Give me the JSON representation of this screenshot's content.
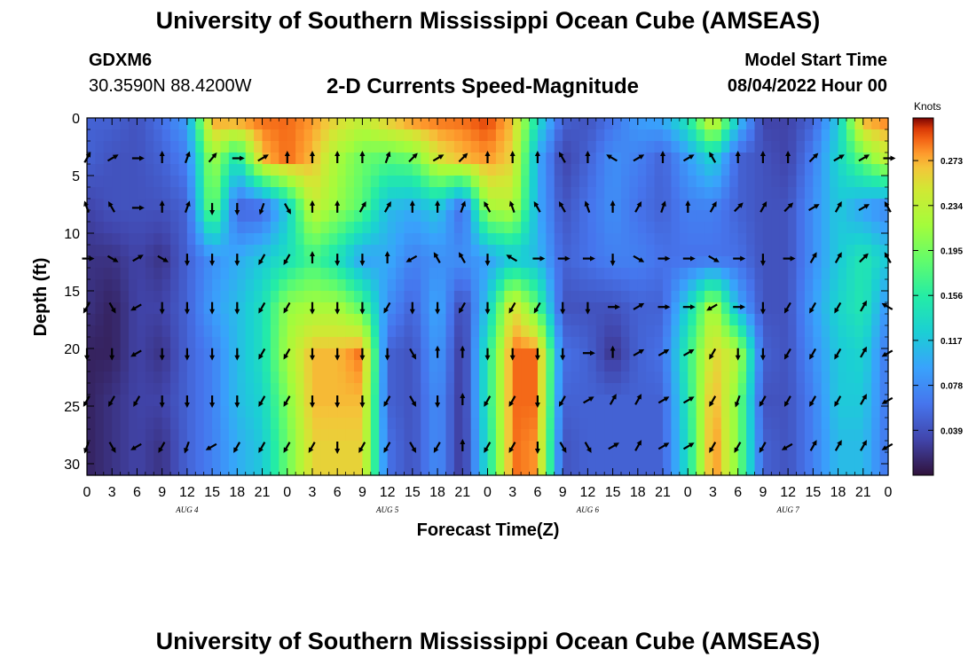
{
  "header": {
    "title_top": "University of Southern Mississippi Ocean Cube (AMSEAS)",
    "title_bottom": "University of Southern Mississippi Ocean Cube (AMSEAS)",
    "station_id": "GDXM6",
    "station_coords": "30.3590N  88.4200W",
    "plot_title": "2-D Currents Speed-Magnitude",
    "model_label": "Model Start Time",
    "model_date": "08/04/2022 Hour 00"
  },
  "chart_data": {
    "type": "heatmap",
    "title": "2-D Currents Speed-Magnitude",
    "xlabel": "Forecast Time(Z)",
    "ylabel": "Depth (ft)",
    "xlim": [
      0,
      96
    ],
    "ylim": [
      31,
      0
    ],
    "x_ticks": [
      0,
      3,
      6,
      9,
      12,
      15,
      18,
      21,
      24,
      27,
      30,
      33,
      36,
      39,
      42,
      45,
      48,
      51,
      54,
      57,
      60,
      63,
      66,
      69,
      72,
      75,
      78,
      81,
      84,
      87,
      90,
      93,
      96
    ],
    "x_tick_labels": [
      "0",
      "3",
      "6",
      "9",
      "12",
      "15",
      "18",
      "21",
      "0",
      "3",
      "6",
      "9",
      "12",
      "15",
      "18",
      "21",
      "0",
      "3",
      "6",
      "9",
      "12",
      "15",
      "18",
      "21",
      "0",
      "3",
      "6",
      "9",
      "12",
      "15",
      "18",
      "21",
      "0"
    ],
    "y_ticks": [
      0,
      5,
      10,
      15,
      20,
      25,
      30
    ],
    "y_tick_labels": [
      "0",
      "5",
      "10",
      "15",
      "20",
      "25",
      "30"
    ],
    "day_labels": [
      {
        "hour": 12,
        "text": "AUG 4"
      },
      {
        "hour": 36,
        "text": "AUG 5"
      },
      {
        "hour": 60,
        "text": "AUG 6"
      },
      {
        "hour": 84,
        "text": "AUG 7"
      }
    ],
    "colorbar": {
      "unit": "Knots",
      "min": 0.0,
      "max": 0.31,
      "ticks": [
        0.039,
        0.078,
        0.117,
        0.156,
        0.195,
        0.234,
        0.273
      ],
      "tick_labels": [
        "0.039",
        "0.078",
        "0.117",
        "0.156",
        "0.195",
        "0.234",
        "0.273"
      ]
    },
    "grid_hours": [
      0,
      3,
      6,
      9,
      12,
      15,
      18,
      21,
      24,
      27,
      30,
      33,
      36,
      39,
      42,
      45,
      48,
      51,
      54,
      57,
      60,
      63,
      66,
      69,
      72,
      75,
      78,
      81,
      84,
      87,
      90,
      93,
      96
    ],
    "grid_depths": [
      0,
      3.5,
      7.8,
      12.2,
      16.4,
      20.4,
      24.5,
      28.5,
      31
    ],
    "speed_knots": [
      [
        0.05,
        0.05,
        0.04,
        0.06,
        0.09,
        0.28,
        0.29,
        0.29,
        0.29,
        0.28,
        0.26,
        0.24,
        0.27,
        0.29,
        0.29,
        0.29,
        0.3,
        0.27,
        0.14,
        0.05,
        0.04,
        0.06,
        0.09,
        0.1,
        0.15,
        0.26,
        0.12,
        0.03,
        0.03,
        0.05,
        0.12,
        0.28,
        0.29
      ],
      [
        0.05,
        0.04,
        0.04,
        0.05,
        0.07,
        0.22,
        0.14,
        0.27,
        0.29,
        0.27,
        0.22,
        0.19,
        0.18,
        0.19,
        0.25,
        0.27,
        0.28,
        0.26,
        0.1,
        0.03,
        0.05,
        0.08,
        0.07,
        0.05,
        0.09,
        0.13,
        0.05,
        0.04,
        0.03,
        0.07,
        0.13,
        0.19,
        0.24
      ],
      [
        0.03,
        0.04,
        0.04,
        0.04,
        0.05,
        0.2,
        0.05,
        0.05,
        0.12,
        0.24,
        0.21,
        0.18,
        0.11,
        0.1,
        0.12,
        0.05,
        0.22,
        0.23,
        0.1,
        0.04,
        0.06,
        0.08,
        0.06,
        0.05,
        0.07,
        0.07,
        0.05,
        0.04,
        0.04,
        0.08,
        0.12,
        0.09,
        0.07
      ],
      [
        0.02,
        0.02,
        0.03,
        0.02,
        0.05,
        0.08,
        0.1,
        0.12,
        0.14,
        0.17,
        0.14,
        0.09,
        0.1,
        0.07,
        0.08,
        0.08,
        0.09,
        0.12,
        0.11,
        0.05,
        0.06,
        0.07,
        0.07,
        0.06,
        0.06,
        0.06,
        0.06,
        0.04,
        0.04,
        0.08,
        0.12,
        0.15,
        0.12
      ],
      [
        0.02,
        0.01,
        0.03,
        0.03,
        0.05,
        0.09,
        0.11,
        0.14,
        0.21,
        0.22,
        0.22,
        0.18,
        0.08,
        0.05,
        0.1,
        0.03,
        0.12,
        0.26,
        0.18,
        0.04,
        0.04,
        0.04,
        0.05,
        0.05,
        0.13,
        0.23,
        0.1,
        0.04,
        0.04,
        0.09,
        0.13,
        0.15,
        0.08
      ],
      [
        0.01,
        0.01,
        0.03,
        0.02,
        0.05,
        0.07,
        0.11,
        0.14,
        0.22,
        0.27,
        0.27,
        0.29,
        0.05,
        0.04,
        0.09,
        0.02,
        0.15,
        0.29,
        0.29,
        0.06,
        0.05,
        0.02,
        0.05,
        0.06,
        0.16,
        0.26,
        0.23,
        0.05,
        0.04,
        0.08,
        0.12,
        0.13,
        0.06
      ],
      [
        0.01,
        0.02,
        0.03,
        0.03,
        0.05,
        0.07,
        0.11,
        0.13,
        0.2,
        0.27,
        0.27,
        0.27,
        0.05,
        0.04,
        0.08,
        0.02,
        0.15,
        0.29,
        0.29,
        0.05,
        0.05,
        0.05,
        0.05,
        0.05,
        0.15,
        0.28,
        0.2,
        0.04,
        0.04,
        0.07,
        0.12,
        0.12,
        0.06
      ],
      [
        0.01,
        0.02,
        0.03,
        0.02,
        0.05,
        0.07,
        0.1,
        0.12,
        0.19,
        0.26,
        0.26,
        0.26,
        0.06,
        0.04,
        0.08,
        0.02,
        0.14,
        0.29,
        0.28,
        0.04,
        0.05,
        0.05,
        0.05,
        0.05,
        0.14,
        0.29,
        0.2,
        0.05,
        0.04,
        0.07,
        0.11,
        0.11,
        0.06
      ],
      [
        0.01,
        0.02,
        0.03,
        0.02,
        0.05,
        0.07,
        0.1,
        0.12,
        0.19,
        0.26,
        0.26,
        0.26,
        0.06,
        0.04,
        0.08,
        0.02,
        0.14,
        0.29,
        0.28,
        0.04,
        0.05,
        0.05,
        0.05,
        0.05,
        0.14,
        0.29,
        0.2,
        0.05,
        0.04,
        0.07,
        0.11,
        0.11,
        0.06
      ]
    ],
    "arrow_depths": [
      3.5,
      7.8,
      12.2,
      16.4,
      20.4,
      24.5,
      28.5
    ],
    "arrow_hours": [
      0,
      3,
      6,
      9,
      12,
      15,
      18,
      21,
      24,
      27,
      30,
      33,
      36,
      39,
      42,
      45,
      48,
      51,
      54,
      57,
      60,
      63,
      66,
      69,
      72,
      75,
      78,
      81,
      84,
      87,
      90,
      93,
      96
    ],
    "arrow_direction_deg": [
      [
        30,
        60,
        90,
        0,
        20,
        40,
        90,
        60,
        0,
        0,
        0,
        0,
        20,
        45,
        60,
        45,
        0,
        0,
        0,
        330,
        0,
        300,
        60,
        0,
        60,
        330,
        0,
        0,
        0,
        45,
        60,
        60,
        90
      ],
      [
        340,
        330,
        90,
        0,
        20,
        180,
        180,
        200,
        150,
        0,
        0,
        30,
        30,
        0,
        0,
        20,
        330,
        340,
        330,
        330,
        340,
        0,
        30,
        20,
        0,
        30,
        45,
        30,
        45,
        60,
        30,
        60,
        330
      ],
      [
        90,
        120,
        60,
        120,
        180,
        180,
        180,
        210,
        210,
        0,
        180,
        180,
        0,
        240,
        330,
        330,
        180,
        300,
        90,
        90,
        90,
        180,
        120,
        90,
        90,
        120,
        90,
        180,
        90,
        30,
        30,
        45,
        330
      ],
      [
        210,
        150,
        240,
        180,
        180,
        180,
        180,
        210,
        210,
        180,
        180,
        180,
        210,
        180,
        180,
        210,
        180,
        210,
        210,
        180,
        180,
        90,
        60,
        90,
        90,
        240,
        90,
        180,
        210,
        210,
        210,
        30,
        300
      ],
      [
        180,
        180,
        240,
        180,
        180,
        180,
        180,
        210,
        210,
        180,
        180,
        180,
        180,
        150,
        0,
        0,
        180,
        180,
        180,
        180,
        90,
        0,
        60,
        60,
        60,
        210,
        180,
        180,
        210,
        210,
        210,
        30,
        240
      ],
      [
        210,
        210,
        210,
        180,
        180,
        180,
        180,
        210,
        210,
        180,
        180,
        180,
        210,
        150,
        180,
        0,
        210,
        210,
        180,
        210,
        60,
        30,
        30,
        60,
        60,
        210,
        200,
        210,
        210,
        210,
        210,
        30,
        240
      ],
      [
        200,
        150,
        240,
        210,
        200,
        240,
        210,
        210,
        210,
        210,
        180,
        210,
        210,
        150,
        210,
        0,
        210,
        210,
        180,
        150,
        150,
        60,
        30,
        60,
        60,
        210,
        210,
        210,
        240,
        30,
        30,
        30,
        240
      ]
    ]
  }
}
